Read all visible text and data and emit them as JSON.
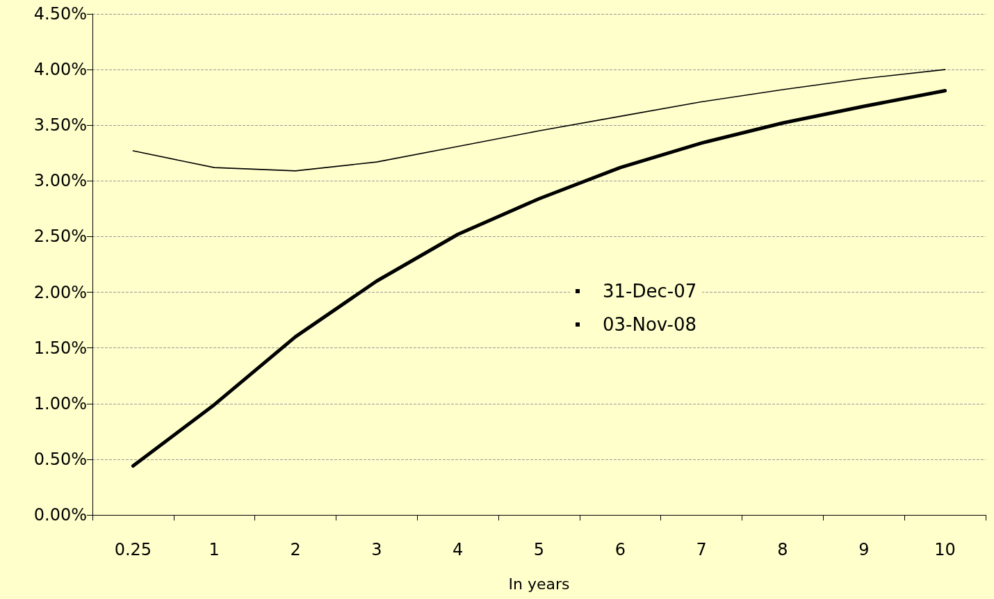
{
  "chart_data": {
    "type": "line",
    "xlabel": "In years",
    "categories": [
      "0.25",
      "1",
      "2",
      "3",
      "4",
      "5",
      "6",
      "7",
      "8",
      "9",
      "10"
    ],
    "series": [
      {
        "name": "31-Dec-07",
        "color": "#000000",
        "values": [
          3.27,
          3.12,
          3.09,
          3.17,
          3.31,
          3.45,
          3.58,
          3.71,
          3.82,
          3.92,
          4.0
        ]
      },
      {
        "name": "03-Nov-08",
        "color": "#000000",
        "values": [
          0.44,
          0.99,
          1.6,
          2.1,
          2.52,
          2.84,
          3.12,
          3.34,
          3.52,
          3.67,
          3.81
        ]
      }
    ],
    "ylim": [
      0,
      4.5
    ],
    "yticks": [
      {
        "value": 0,
        "label": "0.00%"
      },
      {
        "value": 0.5,
        "label": "0.50%"
      },
      {
        "value": 1,
        "label": "1.00%"
      },
      {
        "value": 1.5,
        "label": "1.50%"
      },
      {
        "value": 2,
        "label": "2.00%"
      },
      {
        "value": 2.5,
        "label": "2.50%"
      },
      {
        "value": 3,
        "label": "3.00%"
      },
      {
        "value": 3.5,
        "label": "3.50%"
      },
      {
        "value": 4,
        "label": "4.00%"
      },
      {
        "value": 4.5,
        "label": "4.50%"
      }
    ],
    "grid": "y",
    "legend": "center",
    "marker": "none",
    "line_style": "solid"
  }
}
